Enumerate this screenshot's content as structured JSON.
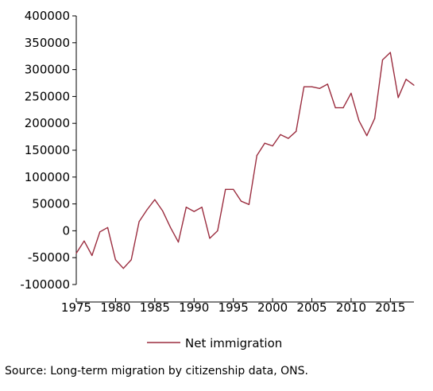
{
  "chart_data": {
    "type": "line",
    "title": "",
    "xlabel": "",
    "ylabel": "",
    "ylim": [
      -100000,
      400000
    ],
    "xlim": [
      1975,
      2018
    ],
    "y_ticks": [
      -100000,
      -50000,
      0,
      50000,
      100000,
      150000,
      200000,
      250000,
      300000,
      350000,
      400000
    ],
    "y_tick_labels": [
      "-100000",
      "-50000",
      "0",
      "50000",
      "100000",
      "150000",
      "200000",
      "250000",
      "300000",
      "350000",
      "400000"
    ],
    "x_ticks": [
      1975,
      1980,
      1985,
      1990,
      1995,
      2000,
      2005,
      2010,
      2015
    ],
    "x_tick_labels": [
      "1975",
      "1980",
      "1985",
      "1990",
      "1995",
      "2000",
      "2005",
      "2010",
      "2015"
    ],
    "grid": false,
    "legend_position": "bottom",
    "color": "#9b2d3f",
    "x": [
      1975,
      1976,
      1977,
      1978,
      1979,
      1980,
      1981,
      1982,
      1983,
      1984,
      1985,
      1986,
      1987,
      1988,
      1989,
      1990,
      1991,
      1992,
      1993,
      1994,
      1995,
      1996,
      1997,
      1998,
      1999,
      2000,
      2001,
      2002,
      2003,
      2004,
      2005,
      2006,
      2007,
      2008,
      2009,
      2010,
      2011,
      2012,
      2013,
      2014,
      2015,
      2016,
      2017,
      2018
    ],
    "series": [
      {
        "name": "Net immigration",
        "values": [
          -42000,
          -19000,
          -46000,
          -2000,
          6000,
          -54000,
          -70000,
          -54000,
          17000,
          39000,
          58000,
          37000,
          6000,
          -21000,
          44000,
          36000,
          44000,
          -14000,
          0,
          77000,
          77000,
          55000,
          49000,
          140000,
          163000,
          158000,
          179000,
          172000,
          185000,
          268000,
          268000,
          265000,
          273000,
          229000,
          229000,
          256000,
          205000,
          177000,
          209000,
          318000,
          332000,
          248000,
          282000,
          271000
        ]
      }
    ]
  },
  "source_note": "Source: Long-term migration by citizenship data, ONS."
}
